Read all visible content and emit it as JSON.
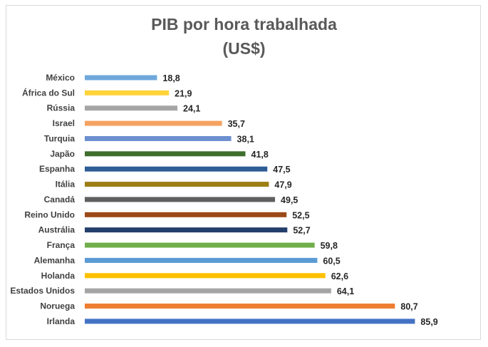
{
  "chart_data": {
    "type": "bar",
    "orientation": "horizontal",
    "title_line1": "PIB por hora trabalhada",
    "title_line2": "(US$)",
    "xlabel": "",
    "ylabel": "",
    "xlim": [
      0,
      90
    ],
    "grid": false,
    "legend": "none",
    "data_labels": [
      "18,8",
      "21,9",
      "24,1",
      "35,7",
      "38,1",
      "41,8",
      "47,5",
      "47,9",
      "49,5",
      "52,5",
      "52,7",
      "59,8",
      "60,5",
      "62,6",
      "64,1",
      "80,7",
      "85,9"
    ],
    "categories": [
      "México",
      "África do Sul",
      "Rússia",
      "Israel",
      "Turquia",
      "Japão",
      "Espanha",
      "Itália",
      "Canadá",
      "Reino Unido",
      "Austrália",
      "França",
      "Alemanha",
      "Holanda",
      "Estados Unidos",
      "Noruega",
      "Irlanda"
    ],
    "values": [
      18.8,
      21.9,
      24.1,
      35.7,
      38.1,
      41.8,
      47.5,
      47.9,
      49.5,
      52.5,
      52.7,
      59.8,
      60.5,
      62.6,
      64.1,
      80.7,
      85.9
    ],
    "colors": [
      "#6fa8dc",
      "#ffd43b",
      "#a5a5a5",
      "#f4a261",
      "#6b8fcf",
      "#3f6e2c",
      "#2e5d94",
      "#9c7e14",
      "#5f5f5f",
      "#9b4a18",
      "#233e6b",
      "#6fae4a",
      "#5b9bd5",
      "#ffc000",
      "#a5a5a5",
      "#ed7d31",
      "#4472c4"
    ]
  }
}
